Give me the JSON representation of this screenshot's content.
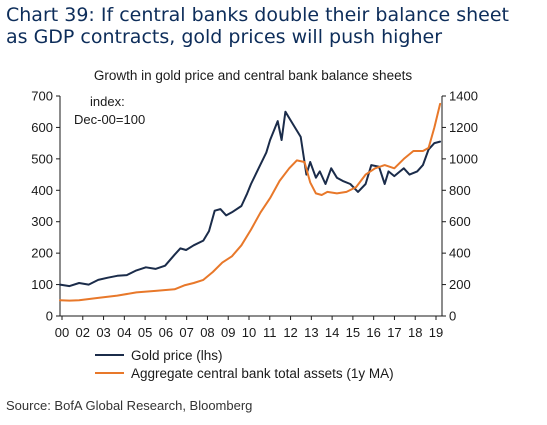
{
  "header": {
    "title_line1": "Chart 39: If central banks double their balance sheet",
    "title_line2": "as GDP contracts, gold prices will push higher"
  },
  "source": "Source: BofA Global Research, Bloomberg",
  "chart_data": {
    "type": "line",
    "title": "Growth in gold price and central bank balance sheets",
    "annotation_line1": "index:",
    "annotation_line2": "Dec-00=100",
    "xlabel": "",
    "x_ticks": [
      "00",
      "02",
      "03",
      "04",
      "05",
      "06",
      "07",
      "08",
      "09",
      "10",
      "11",
      "12",
      "13",
      "14",
      "15",
      "16",
      "17",
      "18",
      "19"
    ],
    "xlim": [
      2000.0,
      2020.0
    ],
    "y_left": {
      "label": "",
      "lim": [
        0,
        700
      ],
      "ticks": [
        0,
        100,
        200,
        300,
        400,
        500,
        600,
        700
      ]
    },
    "y_right": {
      "label": "",
      "lim": [
        0,
        1400
      ],
      "ticks": [
        0,
        200,
        400,
        600,
        800,
        1000,
        1200,
        1400
      ]
    },
    "legend_position": "bottom",
    "series": [
      {
        "name": "Gold price (lhs)",
        "axis": "left",
        "color": "#1b2c4a",
        "x": [
          2000.0,
          2000.5,
          2001.0,
          2001.5,
          2002.0,
          2002.5,
          2003.0,
          2003.5,
          2004.0,
          2004.5,
          2005.0,
          2005.5,
          2006.0,
          2006.3,
          2006.6,
          2007.0,
          2007.5,
          2007.8,
          2008.1,
          2008.4,
          2008.7,
          2009.0,
          2009.5,
          2009.8,
          2010.0,
          2010.4,
          2010.8,
          2011.0,
          2011.2,
          2011.4,
          2011.6,
          2011.8,
          2012.0,
          2012.3,
          2012.6,
          2012.9,
          2013.1,
          2013.4,
          2013.6,
          2013.9,
          2014.2,
          2014.5,
          2014.8,
          2015.2,
          2015.6,
          2016.0,
          2016.3,
          2016.7,
          2017.0,
          2017.2,
          2017.5,
          2017.8,
          2018.0,
          2018.3,
          2018.7,
          2019.0,
          2019.3,
          2019.6,
          2019.9
        ],
        "values": [
          100,
          95,
          105,
          100,
          115,
          122,
          128,
          130,
          145,
          155,
          150,
          160,
          195,
          215,
          210,
          225,
          240,
          270,
          335,
          340,
          320,
          330,
          350,
          390,
          420,
          470,
          520,
          560,
          590,
          620,
          560,
          650,
          630,
          600,
          570,
          450,
          490,
          440,
          460,
          420,
          470,
          440,
          430,
          420,
          395,
          420,
          480,
          475,
          420,
          460,
          445,
          460,
          470,
          450,
          460,
          480,
          530,
          550,
          555
        ]
      },
      {
        "name": "Aggregate central bank total assets (1y MA)",
        "axis": "right",
        "color": "#e8782a",
        "x": [
          2000.0,
          2000.5,
          2001.0,
          2002.0,
          2003.0,
          2004.0,
          2005.0,
          2006.0,
          2006.5,
          2007.0,
          2007.5,
          2008.0,
          2008.5,
          2009.0,
          2009.5,
          2010.0,
          2010.5,
          2011.0,
          2011.5,
          2012.0,
          2012.4,
          2012.8,
          2013.1,
          2013.4,
          2013.7,
          2014.0,
          2014.5,
          2015.0,
          2015.5,
          2016.0,
          2016.5,
          2017.0,
          2017.5,
          2018.0,
          2018.5,
          2019.0,
          2019.3,
          2019.6,
          2019.9
        ],
        "values": [
          100,
          98,
          100,
          115,
          130,
          150,
          160,
          170,
          195,
          210,
          230,
          280,
          340,
          380,
          450,
          550,
          660,
          750,
          860,
          940,
          990,
          980,
          850,
          780,
          770,
          790,
          780,
          790,
          820,
          900,
          940,
          960,
          940,
          1000,
          1050,
          1050,
          1070,
          1200,
          1350
        ]
      }
    ]
  }
}
